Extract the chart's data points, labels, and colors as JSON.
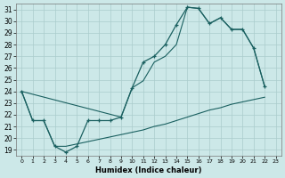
{
  "xlabel": "Humidex (Indice chaleur)",
  "background_color": "#cce8e8",
  "grid_color": "#aacccc",
  "line_color": "#1a6060",
  "xlim": [
    -0.5,
    23.5
  ],
  "ylim": [
    18.5,
    31.5
  ],
  "xticks": [
    0,
    1,
    2,
    3,
    4,
    5,
    6,
    7,
    8,
    9,
    10,
    11,
    12,
    13,
    14,
    15,
    16,
    17,
    18,
    19,
    20,
    21,
    22,
    23
  ],
  "yticks": [
    19,
    20,
    21,
    22,
    23,
    24,
    25,
    26,
    27,
    28,
    29,
    30,
    31
  ],
  "line_main": {
    "x": [
      0,
      1,
      2,
      3,
      4,
      5,
      6,
      7,
      8,
      9,
      10,
      11,
      12,
      13,
      14,
      15,
      16,
      17,
      18,
      19,
      20,
      21,
      22
    ],
    "y": [
      24,
      21.5,
      21.5,
      19.3,
      18.8,
      19.3,
      21.5,
      21.5,
      21.5,
      21.8,
      24.3,
      26.5,
      27.0,
      28.0,
      29.7,
      31.2,
      31.1,
      29.8,
      30.3,
      29.3,
      29.3,
      27.7,
      24.4
    ]
  },
  "line_upper": {
    "x": [
      0,
      9,
      10,
      11,
      12,
      13,
      14,
      15,
      16,
      17,
      18,
      19,
      20,
      21,
      22
    ],
    "y": [
      24,
      21.8,
      24.3,
      24.9,
      26.5,
      27.0,
      28.0,
      31.2,
      31.1,
      29.8,
      30.3,
      29.3,
      29.3,
      27.7,
      24.4
    ]
  },
  "line_lower": {
    "x": [
      0,
      1,
      2,
      3,
      4,
      5,
      6,
      7,
      8,
      9,
      10,
      11,
      12,
      13,
      14,
      15,
      16,
      17,
      18,
      19,
      20,
      21,
      22
    ],
    "y": [
      24,
      21.5,
      21.5,
      19.3,
      19.3,
      19.5,
      19.7,
      19.9,
      20.1,
      20.3,
      20.5,
      20.7,
      21.0,
      21.2,
      21.5,
      21.8,
      22.1,
      22.4,
      22.6,
      22.9,
      23.1,
      23.3,
      23.5
    ]
  }
}
